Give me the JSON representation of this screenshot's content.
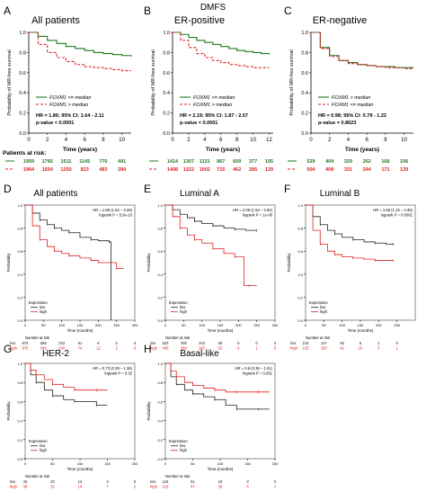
{
  "figure_title": "DMFS",
  "colors": {
    "green": "#1f7a1f",
    "red": "#e02020",
    "black": "#222222",
    "axis": "#000000"
  },
  "chart_data": [
    {
      "id": "A",
      "letter": "A",
      "title": "All patients",
      "type": "line",
      "ylabel": "Probability of MR-free survival",
      "xlabel": "Time (years)",
      "xlim": [
        0,
        11
      ],
      "ylim": [
        0,
        1
      ],
      "xticks": [
        "0",
        "2",
        "4",
        "6",
        "8",
        "10"
      ],
      "xtick_values": [
        0,
        2,
        4,
        6,
        8,
        10
      ],
      "yticks": [
        "0.0",
        "0.2",
        "0.4",
        "0.6",
        "0.8",
        "1.0"
      ],
      "series": [
        {
          "name": "FOXM1 <= median",
          "color": "#1f7a1f",
          "dash": false,
          "x": [
            0,
            1,
            2,
            3,
            4,
            5,
            6,
            7,
            8,
            9,
            10,
            11
          ],
          "y": [
            1.0,
            0.96,
            0.92,
            0.89,
            0.86,
            0.84,
            0.82,
            0.8,
            0.79,
            0.78,
            0.77,
            0.76
          ]
        },
        {
          "name": "FOXM1 > median",
          "color": "#e02020",
          "dash": true,
          "x": [
            0,
            1,
            2,
            3,
            4,
            5,
            6,
            7,
            8,
            9,
            10,
            11
          ],
          "y": [
            1.0,
            0.88,
            0.8,
            0.75,
            0.71,
            0.68,
            0.66,
            0.65,
            0.64,
            0.63,
            0.62,
            0.62
          ]
        }
      ],
      "annotation": [
        "HR = 1.86; 95% CI: 1.64 - 2.11",
        "p-value < 0.0001"
      ],
      "risk_title": "Patients at risk:",
      "risk": [
        {
          "color": "#1f7a1f",
          "values": [
            "1959",
            "1765",
            "1511",
            "1145",
            "770",
            "491"
          ]
        },
        {
          "color": "#e02020",
          "values": [
            "1964",
            "1654",
            "1250",
            "823",
            "483",
            "284"
          ]
        }
      ]
    },
    {
      "id": "B",
      "letter": "B",
      "title": "ER-positive",
      "type": "line",
      "ylabel": "Probability of MR-free survival",
      "xlabel": "Time (years)",
      "xlim": [
        0,
        12.5
      ],
      "ylim": [
        0,
        1
      ],
      "xticks": [
        "0",
        "2",
        "4",
        "6",
        "8",
        "10",
        "12"
      ],
      "xtick_values": [
        0,
        2,
        4,
        6,
        8,
        10,
        12
      ],
      "yticks": [
        "0.0",
        "0.2",
        "0.4",
        "0.6",
        "0.8",
        "1.0"
      ],
      "series": [
        {
          "name": "FOXM1 <= median",
          "color": "#1f7a1f",
          "dash": false,
          "x": [
            0,
            1,
            2,
            3,
            4,
            5,
            6,
            7,
            8,
            9,
            10,
            11,
            12
          ],
          "y": [
            1.0,
            0.98,
            0.95,
            0.92,
            0.9,
            0.88,
            0.86,
            0.84,
            0.82,
            0.81,
            0.8,
            0.79,
            0.78
          ]
        },
        {
          "name": "FOXM1 > median",
          "color": "#e02020",
          "dash": true,
          "x": [
            0,
            1,
            2,
            3,
            4,
            5,
            6,
            7,
            8,
            9,
            10,
            11,
            12
          ],
          "y": [
            1.0,
            0.92,
            0.85,
            0.79,
            0.75,
            0.72,
            0.7,
            0.68,
            0.67,
            0.66,
            0.65,
            0.65,
            0.65
          ]
        }
      ],
      "annotation": [
        "HR = 2.19; 95% CI: 1.87 - 2.57",
        "p-value < 0.0001"
      ],
      "risk_title": "",
      "risk": [
        {
          "color": "#1f7a1f",
          "values": [
            "1414",
            "1307",
            "1131",
            "867",
            "609",
            "377",
            "155"
          ]
        },
        {
          "color": "#e02020",
          "values": [
            "1408",
            "1222",
            "1002",
            "715",
            "462",
            "285",
            "129"
          ]
        }
      ]
    },
    {
      "id": "C",
      "letter": "C",
      "title": "ER-negative",
      "type": "line",
      "ylabel": "Probability of MR-free survival",
      "xlabel": "Time (years)",
      "xlim": [
        0,
        11
      ],
      "ylim": [
        0,
        1
      ],
      "xticks": [
        "0",
        "2",
        "4",
        "6",
        "8",
        "10"
      ],
      "xtick_values": [
        0,
        2,
        4,
        6,
        8,
        10
      ],
      "yticks": [
        "0.0",
        "0.2",
        "0.4",
        "0.6",
        "0.8",
        "1.0"
      ],
      "series": [
        {
          "name": "FOXM1 > median",
          "color": "#1f7a1f",
          "dash": false,
          "x": [
            0,
            1,
            2,
            3,
            4,
            5,
            6,
            7,
            8,
            9,
            10,
            11
          ],
          "y": [
            1.0,
            0.85,
            0.77,
            0.72,
            0.7,
            0.68,
            0.67,
            0.66,
            0.66,
            0.65,
            0.65,
            0.65
          ]
        },
        {
          "name": "FOXM1 <= median",
          "color": "#e02020",
          "dash": true,
          "x": [
            0,
            1,
            2,
            3,
            4,
            5,
            6,
            7,
            8,
            9,
            10,
            11
          ],
          "y": [
            1.0,
            0.84,
            0.76,
            0.72,
            0.69,
            0.68,
            0.67,
            0.66,
            0.65,
            0.65,
            0.64,
            0.64
          ]
        }
      ],
      "annotation": [
        "HR = 0.98; 95% CI: 0.79 - 1.22",
        "p-value = 0.8623"
      ],
      "risk_title": "",
      "risk": [
        {
          "color": "#1f7a1f",
          "values": [
            "529",
            "404",
            "329",
            "262",
            "168",
            "106"
          ]
        },
        {
          "color": "#e02020",
          "values": [
            "504",
            "408",
            "331",
            "244",
            "171",
            "129"
          ]
        }
      ]
    },
    {
      "id": "D",
      "letter": "D",
      "title": "All patients",
      "type": "line",
      "ylabel": "Probability",
      "xlabel": "Time (months)",
      "xlim": [
        0,
        300
      ],
      "ylim": [
        0,
        1
      ],
      "xticks": [
        "0",
        "50",
        "100",
        "150",
        "200",
        "250",
        "300"
      ],
      "xtick_values": [
        0,
        50,
        100,
        150,
        200,
        250,
        300
      ],
      "yticks": [
        "0.0",
        "0.2",
        "0.4",
        "0.6",
        "0.8",
        "1.0"
      ],
      "series": [
        {
          "name": "low",
          "color": "#222222",
          "dash": false,
          "x": [
            0,
            20,
            40,
            60,
            80,
            100,
            120,
            150,
            180,
            200,
            230,
            235
          ],
          "y": [
            1.0,
            0.93,
            0.87,
            0.83,
            0.8,
            0.78,
            0.76,
            0.72,
            0.7,
            0.69,
            0.68,
            0.0
          ]
        },
        {
          "name": "high",
          "color": "#e02020",
          "dash": false,
          "x": [
            0,
            20,
            40,
            60,
            80,
            100,
            120,
            150,
            180,
            200,
            250,
            270
          ],
          "y": [
            1.0,
            0.82,
            0.7,
            0.64,
            0.6,
            0.58,
            0.56,
            0.54,
            0.52,
            0.5,
            0.45,
            0.45
          ]
        }
      ],
      "annotation": [
        "HR = 1.85 (1.52 – 2.26)",
        "logrank P = 5.8e-10"
      ],
      "legend_title": "Expression",
      "risk_title": "Number at risk",
      "risk": [
        {
          "label": "low",
          "color": "#222222",
          "values": [
            "876",
            "695",
            "332",
            "91",
            "8",
            "0",
            "0"
          ]
        },
        {
          "label": "high",
          "color": "#e02020",
          "values": [
            "875",
            "545",
            "260",
            "74",
            "12",
            "2",
            "0"
          ]
        }
      ]
    },
    {
      "id": "E",
      "letter": "E",
      "title": "Luminal A",
      "type": "line",
      "ylabel": "Probability",
      "xlabel": "Time (months)",
      "xlim": [
        0,
        300
      ],
      "ylim": [
        0,
        1
      ],
      "xticks": [
        "0",
        "50",
        "100",
        "150",
        "200",
        "250",
        "300"
      ],
      "xtick_values": [
        0,
        50,
        100,
        150,
        200,
        250,
        300
      ],
      "yticks": [
        "0.0",
        "0.2",
        "0.4",
        "0.6",
        "0.8",
        "1.0"
      ],
      "series": [
        {
          "name": "low",
          "color": "#222222",
          "dash": false,
          "x": [
            0,
            20,
            40,
            60,
            80,
            100,
            130,
            160,
            190,
            220,
            250
          ],
          "y": [
            1.0,
            0.96,
            0.92,
            0.89,
            0.86,
            0.84,
            0.82,
            0.8,
            0.79,
            0.78,
            0.78
          ]
        },
        {
          "name": "high",
          "color": "#e02020",
          "dash": false,
          "x": [
            0,
            20,
            40,
            60,
            80,
            100,
            130,
            160,
            190,
            215,
            230,
            250
          ],
          "y": [
            1.0,
            0.9,
            0.8,
            0.74,
            0.7,
            0.67,
            0.62,
            0.58,
            0.55,
            0.3,
            0.3,
            0.3
          ]
        }
      ],
      "annotation": [
        "HR = 2.09 (1.54 – 2.82)",
        "logrank P = 1e-06"
      ],
      "legend_title": "Expression",
      "risk_title": "Number at risk",
      "risk": [
        {
          "label": "low",
          "color": "#222222",
          "values": [
            "503",
            "406",
            "204",
            "58",
            "5",
            "0",
            "0"
          ]
        },
        {
          "label": "high",
          "color": "#e02020",
          "values": [
            "483",
            "388",
            "187",
            "52",
            "8",
            "1",
            "0"
          ]
        }
      ]
    },
    {
      "id": "F",
      "letter": "F",
      "title": "Luminal B",
      "type": "line",
      "ylabel": "Probability",
      "xlabel": "Time (months)",
      "xlim": [
        0,
        300
      ],
      "ylim": [
        0,
        1
      ],
      "xticks": [
        "0",
        "50",
        "100",
        "150",
        "200",
        "250"
      ],
      "xtick_values": [
        0,
        50,
        100,
        150,
        200,
        250
      ],
      "yticks": [
        "0.0",
        "0.2",
        "0.4",
        "0.6",
        "0.8",
        "1.0"
      ],
      "series": [
        {
          "name": "low",
          "color": "#222222",
          "dash": false,
          "x": [
            0,
            20,
            40,
            60,
            80,
            100,
            130,
            160,
            190,
            220,
            240
          ],
          "y": [
            1.0,
            0.9,
            0.83,
            0.78,
            0.75,
            0.72,
            0.7,
            0.68,
            0.67,
            0.66,
            0.66
          ]
        },
        {
          "name": "high",
          "color": "#e02020",
          "dash": false,
          "x": [
            0,
            20,
            40,
            60,
            80,
            100,
            130,
            160,
            190,
            220,
            240
          ],
          "y": [
            1.0,
            0.78,
            0.66,
            0.6,
            0.57,
            0.55,
            0.54,
            0.53,
            0.52,
            0.52,
            0.52
          ]
        }
      ],
      "annotation": [
        "HR = 1.65 (1.15 – 2.36)",
        "logrank P = 0.0061"
      ],
      "legend_title": "Expression",
      "risk_title": "Number at risk",
      "risk": [
        {
          "label": "low",
          "color": "#222222",
          "values": [
            "215",
            "147",
            "50",
            "6",
            "1",
            "0"
          ]
        },
        {
          "label": "high",
          "color": "#e02020",
          "values": [
            "215",
            "150",
            "61",
            "15",
            "3",
            "1"
          ]
        }
      ]
    },
    {
      "id": "G",
      "letter": "G",
      "title": "HER-2",
      "type": "line",
      "ylabel": "Probability",
      "xlabel": "Time (months)",
      "xlim": [
        0,
        200
      ],
      "ylim": [
        0,
        1
      ],
      "xticks": [
        "0",
        "50",
        "100",
        "150",
        "200"
      ],
      "xtick_values": [
        0,
        50,
        100,
        150,
        200
      ],
      "yticks": [
        "0.0",
        "0.2",
        "0.4",
        "0.6",
        "0.8",
        "1.0"
      ],
      "series": [
        {
          "name": "low",
          "color": "#222222",
          "dash": false,
          "x": [
            0,
            10,
            20,
            35,
            50,
            70,
            90,
            110,
            130,
            150
          ],
          "y": [
            1.0,
            0.88,
            0.8,
            0.72,
            0.66,
            0.62,
            0.6,
            0.6,
            0.56,
            0.56
          ]
        },
        {
          "name": "high",
          "color": "#e02020",
          "dash": false,
          "x": [
            0,
            10,
            20,
            35,
            50,
            70,
            90,
            110,
            130,
            150
          ],
          "y": [
            1.0,
            0.93,
            0.88,
            0.83,
            0.78,
            0.75,
            0.72,
            0.72,
            0.72,
            0.72
          ]
        }
      ],
      "annotation": [
        "HR = 0.73 (0.39 – 1.36)",
        "logrank P = 0.32"
      ],
      "legend_title": "Expression",
      "risk_title": "Number at risk",
      "risk": [
        {
          "label": "low",
          "color": "#222222",
          "values": [
            "40",
            "30",
            "13",
            "4",
            "0"
          ]
        },
        {
          "label": "high",
          "color": "#e02020",
          "values": [
            "38",
            "31",
            "18",
            "7",
            "2"
          ]
        }
      ]
    },
    {
      "id": "H",
      "letter": "H",
      "title": "Basal-like",
      "type": "line",
      "ylabel": "Probability",
      "xlabel": "Time (months)",
      "xlim": [
        0,
        200
      ],
      "ylim": [
        0,
        1
      ],
      "xticks": [
        "0",
        "50",
        "100",
        "150",
        "200"
      ],
      "xtick_values": [
        0,
        50,
        100,
        150,
        200
      ],
      "yticks": [
        "0.0",
        "0.2",
        "0.4",
        "0.6",
        "0.8",
        "1.0"
      ],
      "series": [
        {
          "name": "low",
          "color": "#222222",
          "dash": false,
          "x": [
            0,
            10,
            20,
            35,
            50,
            70,
            90,
            110,
            130,
            150,
            170,
            190
          ],
          "y": [
            1.0,
            0.86,
            0.78,
            0.72,
            0.68,
            0.65,
            0.62,
            0.56,
            0.52,
            0.52,
            0.52,
            0.52
          ]
        },
        {
          "name": "high",
          "color": "#e02020",
          "dash": false,
          "x": [
            0,
            10,
            20,
            35,
            50,
            70,
            90,
            110,
            130,
            150,
            170,
            190
          ],
          "y": [
            1.0,
            0.92,
            0.86,
            0.8,
            0.77,
            0.74,
            0.72,
            0.7,
            0.7,
            0.7,
            0.7,
            0.7
          ]
        }
      ],
      "annotation": [
        "HR = 0.6 (0.36 – 1.01)",
        "logrank P = 0.051"
      ],
      "legend_title": "Expression",
      "risk_title": "Number at risk",
      "risk": [
        {
          "label": "low",
          "color": "#222222",
          "values": [
            "116",
            "61",
            "18",
            "3",
            "0"
          ]
        },
        {
          "label": "high",
          "color": "#e02020",
          "values": [
            "116",
            "87",
            "30",
            "5",
            "1"
          ]
        }
      ]
    }
  ]
}
